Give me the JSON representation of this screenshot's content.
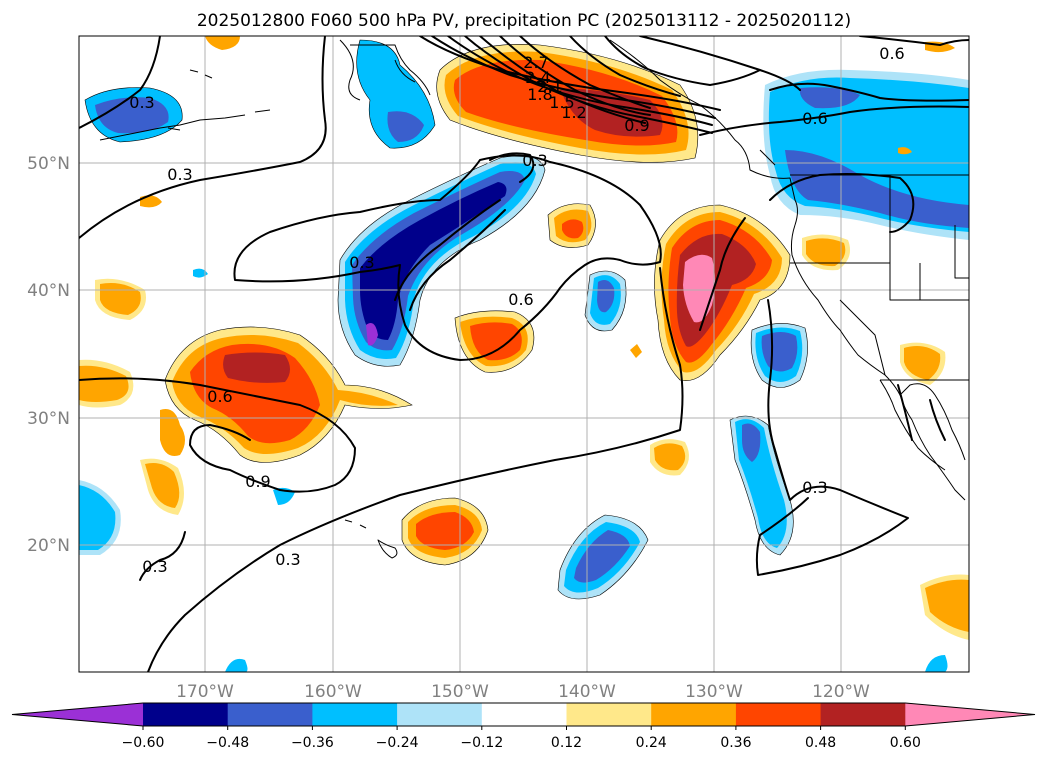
{
  "figure": {
    "title": "2025012800 F060 500 hPa PV, precipitation PC (2025013112 - 2025020112)"
  },
  "map": {
    "latitude_labels": [
      "50°N",
      "40°N",
      "30°N",
      "20°N"
    ],
    "longitude_labels": [
      "170°W",
      "160°W",
      "150°W",
      "140°W",
      "130°W",
      "120°W"
    ],
    "contour_labels": [
      "2.7",
      "2.4",
      "2.1",
      "1.8",
      "1.5",
      "1.2",
      "0.9",
      "0.6",
      "0.3",
      "0.3",
      "0.3",
      "0.3",
      "0.6",
      "0.6",
      "0.6",
      "0.9",
      "0.3",
      "0.3",
      "0.3"
    ]
  },
  "colorbar": {
    "ticks": [
      "−0.60",
      "−0.48",
      "−0.36",
      "−0.24",
      "−0.12",
      "0.12",
      "0.24",
      "0.36",
      "0.48",
      "0.60"
    ],
    "colors": [
      "#9b30d6",
      "#00008b",
      "#3a5fcd",
      "#00bfff",
      "#aee3f8",
      "#ffffff",
      "#ffe88a",
      "#ffa500",
      "#ff4500",
      "#b22222",
      "#ff88b6"
    ]
  }
}
